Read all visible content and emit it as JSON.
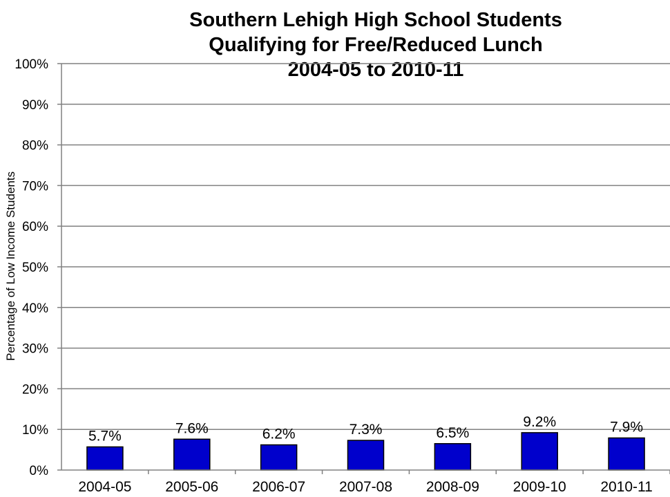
{
  "chart_data": {
    "type": "bar",
    "title_lines": [
      "Southern Lehigh High School Students",
      "Qualifying for Free/Reduced Lunch",
      "2004-05 to 2010-11"
    ],
    "xlabel": "",
    "ylabel": "Percentage of Low Income Students",
    "ylim": [
      0,
      100
    ],
    "y_ticks": [
      0,
      10,
      20,
      30,
      40,
      50,
      60,
      70,
      80,
      90,
      100
    ],
    "y_tick_labels": [
      "0%",
      "10%",
      "20%",
      "30%",
      "40%",
      "50%",
      "60%",
      "70%",
      "80%",
      "90%",
      "100%"
    ],
    "categories": [
      "2004-05",
      "2005-06",
      "2006-07",
      "2007-08",
      "2008-09",
      "2009-10",
      "2010-11"
    ],
    "values": [
      5.7,
      7.6,
      6.2,
      7.3,
      6.5,
      9.2,
      7.9
    ],
    "data_labels": [
      "5.7%",
      "7.6%",
      "6.2%",
      "7.3%",
      "6.5%",
      "9.2%",
      "7.9%"
    ],
    "grid": true,
    "legend": "none",
    "colors": {
      "bar": "#0000CC",
      "bar_edge": "#000000",
      "grid": "#808080",
      "axis": "#808080"
    }
  }
}
